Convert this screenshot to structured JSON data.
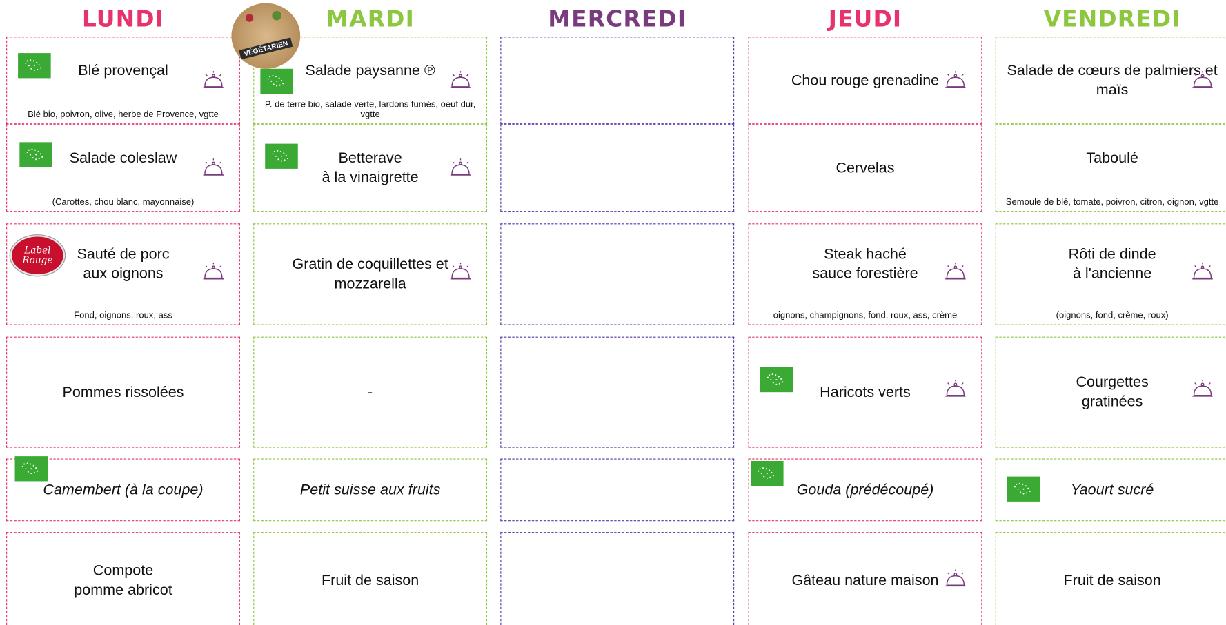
{
  "badges": {
    "vegetarian": "VÉGÉTARIEN",
    "label_rouge": "Label Rouge"
  },
  "days": [
    {
      "name": "LUNDI",
      "items": [
        {
          "title": "Blé provençal",
          "description": "Blé bio, poivron, olive, herbe de Provence, vgtte"
        },
        {
          "title": "Salade coleslaw",
          "description": "(Carottes, chou blanc, mayonnaise)"
        },
        {
          "title": "Sauté de porc\naux oignons",
          "description": "Fond, oignons, roux, ass"
        },
        {
          "title": "Pommes rissolées"
        },
        {
          "title": "Camembert (à la coupe)"
        },
        {
          "title": "Compote\npomme abricot"
        }
      ]
    },
    {
      "name": "MARDI",
      "items": [
        {
          "title": "Salade paysanne ℗",
          "description": "P. de terre bio, salade verte, lardons fumés, oeuf dur, vgtte"
        },
        {
          "title": "Betterave\nà la vinaigrette"
        },
        {
          "title": "Gratin de coquillettes et\nmozzarella"
        },
        {
          "title": "-"
        },
        {
          "title": "Petit suisse aux fruits"
        },
        {
          "title": "Fruit de saison"
        }
      ]
    },
    {
      "name": "MERCREDI"
    },
    {
      "name": "JEUDI",
      "items": [
        {
          "title": "Chou rouge grenadine"
        },
        {
          "title": "Cervelas"
        },
        {
          "title": "Steak haché\nsauce forestière",
          "description": "oignons, champignons, fond, roux, ass, crème"
        },
        {
          "title": "Haricots verts"
        },
        {
          "title": "Gouda (prédécoupé)"
        },
        {
          "title": "Gâteau nature maison"
        }
      ]
    },
    {
      "name": "VENDREDI",
      "items": [
        {
          "title": "Salade de cœurs de palmiers et\nmaïs"
        },
        {
          "title": "Taboulé",
          "description": "Semoule de blé, tomate, poivron, citron, oignon, vgtte"
        },
        {
          "title": "Rôti de dinde\nà l'ancienne",
          "description": "(oignons, fond, crème, roux)"
        },
        {
          "title": "Courgettes\ngratinées"
        },
        {
          "title": "Yaourt sucré"
        },
        {
          "title": "Fruit de saison"
        }
      ]
    }
  ]
}
